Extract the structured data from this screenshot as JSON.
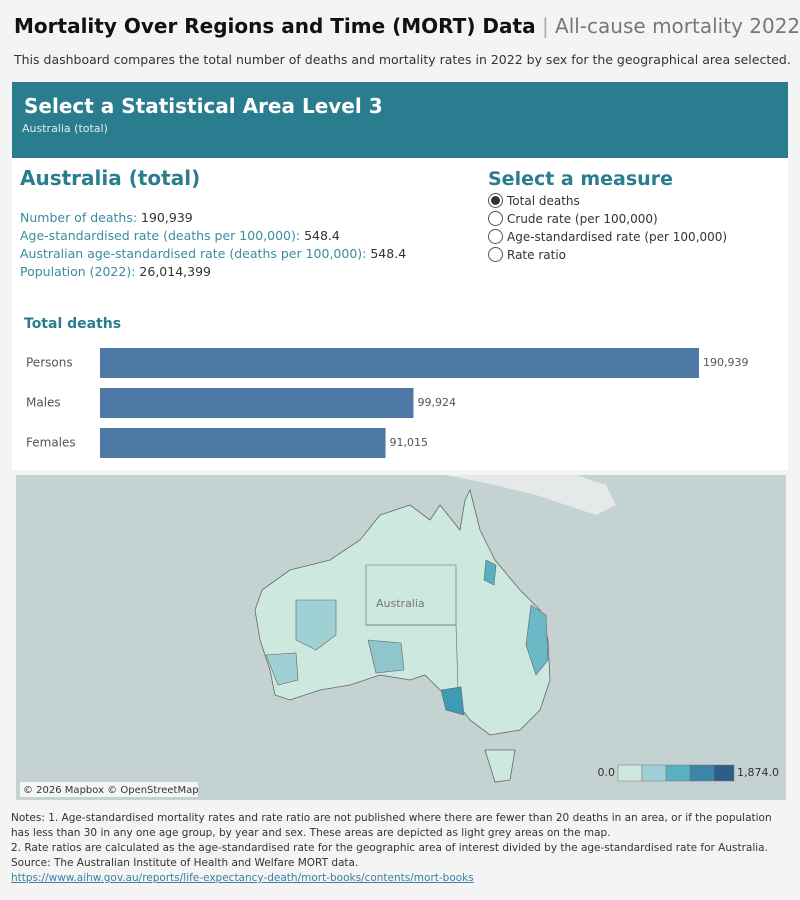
{
  "header": {
    "title": "Mortality Over Regions and Time (MORT) Data",
    "subtitle": "All-cause mortality 2022",
    "description": "This dashboard compares the total number of deaths and mortality rates in 2022 by sex for the geographical area selected."
  },
  "banner": {
    "title": "Select a Statistical Area Level 3",
    "selection": "Australia (total)"
  },
  "summary": {
    "title": "Australia (total)",
    "rows": [
      [
        "Number of deaths:",
        "190,939"
      ],
      [
        "Age-standardised rate (deaths per 100,000):",
        "548.4"
      ],
      [
        "Australian age-standardised rate (deaths per 100,000):",
        "548.4"
      ],
      [
        "Population (2022):",
        "26,014,399"
      ]
    ]
  },
  "measure": {
    "title": "Select a measure",
    "options": [
      "Total deaths",
      "Crude rate (per 100,000)",
      "Age-standardised rate (per 100,000)",
      "Rate ratio"
    ],
    "selected": 0
  },
  "chart_data": {
    "type": "bar",
    "orientation": "horizontal",
    "title": "Total deaths",
    "categories": [
      "Persons",
      "Males",
      "Females"
    ],
    "values": [
      190939,
      99924,
      91015
    ],
    "value_labels": [
      "190,939",
      "99,924",
      "91,015"
    ],
    "color": "#4e79a7"
  },
  "map": {
    "label": "Australia",
    "attribution": "© 2026 Mapbox © OpenStreetMap",
    "legend_min": "0.0",
    "legend_max": "1,874.0"
  },
  "notes": [
    "Notes: 1. Age-standardised mortality rates and rate ratio are not published where there are fewer than 20 deaths in an area, or if the population has less than 30 in any one age group, by year and sex. These areas are depicted as light grey areas on the map.",
    "2. Rate ratios are calculated as the age-standardised rate for the geographic area of interest divided by the age-standardised rate for Australia.",
    "Source: The Australian Institute of Health and Welfare MORT data."
  ],
  "link": "https://www.aihw.gov.au/reports/life-expectancy-death/mort-books/contents/mort-books"
}
